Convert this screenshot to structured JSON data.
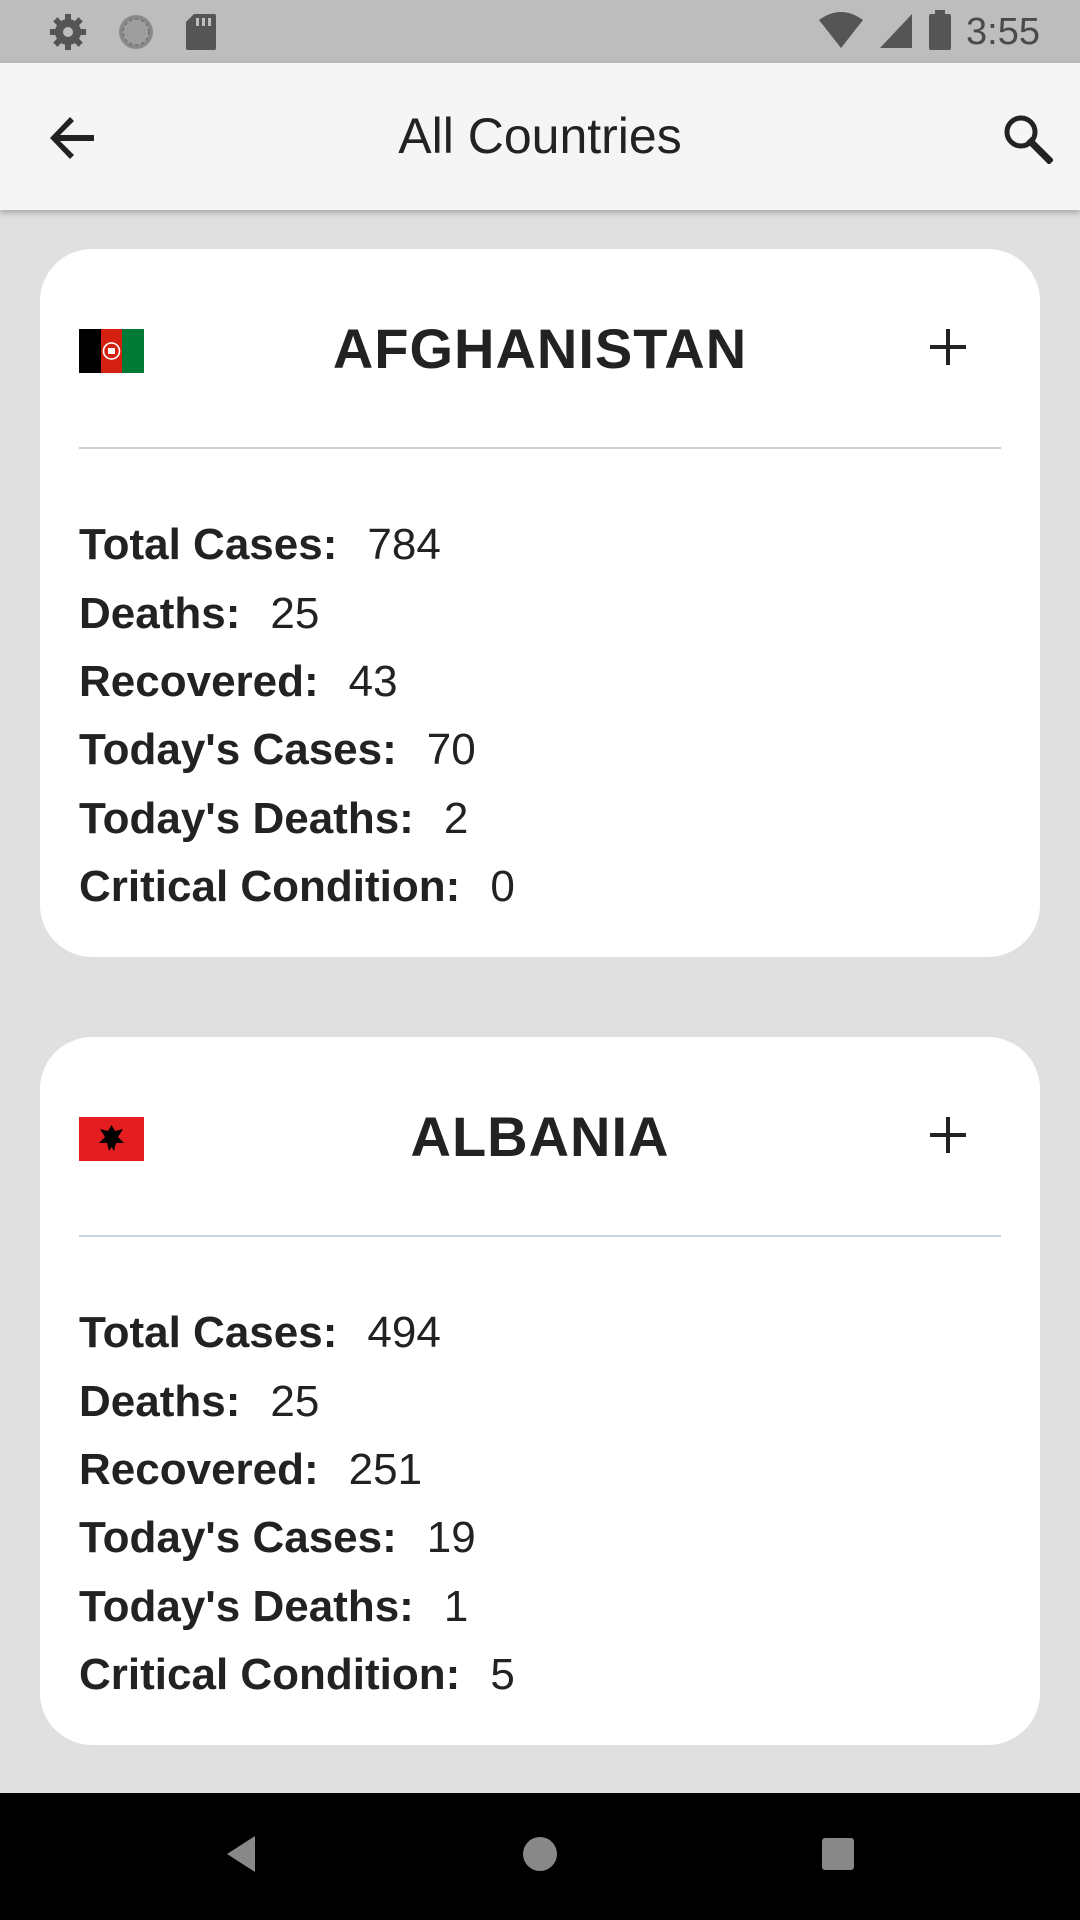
{
  "status_bar": {
    "time": "3:55",
    "icons_left": [
      "gear-icon",
      "circle-sync-icon",
      "sd-card-icon"
    ],
    "icons_right": [
      "wifi-icon",
      "signal-icon",
      "battery-icon"
    ]
  },
  "app_bar": {
    "title": "All Countries",
    "back_icon": "arrow-back-icon",
    "search_icon": "search-icon"
  },
  "countries": [
    {
      "name": "AFGHANISTAN",
      "flag": "afghanistan-flag",
      "expand_label": "+",
      "stats": [
        {
          "label": "Total Cases:",
          "value": "784"
        },
        {
          "label": "Deaths:",
          "value": "25"
        },
        {
          "label": "Recovered:",
          "value": "43"
        },
        {
          "label": "Today's Cases:",
          "value": "70"
        },
        {
          "label": "Today's Deaths:",
          "value": "2"
        },
        {
          "label": "Critical Condition:",
          "value": "0"
        }
      ]
    },
    {
      "name": "ALBANIA",
      "flag": "albania-flag",
      "expand_label": "+",
      "stats": [
        {
          "label": "Total Cases:",
          "value": "494"
        },
        {
          "label": "Deaths:",
          "value": "25"
        },
        {
          "label": "Recovered:",
          "value": "251"
        },
        {
          "label": "Today's Cases:",
          "value": "19"
        },
        {
          "label": "Today's Deaths:",
          "value": "1"
        },
        {
          "label": "Critical Condition:",
          "value": "5"
        }
      ]
    }
  ],
  "nav_bar": {
    "back_icon": "nav-back-icon",
    "home_icon": "nav-home-icon",
    "recents_icon": "nav-recents-icon"
  },
  "colors": {
    "background": "#e0e0e0",
    "app_bar": "#f5f5f5",
    "status_bar": "#bdbdbd",
    "card": "#ffffff",
    "divider": "#c9d3dc",
    "text": "#222222"
  }
}
